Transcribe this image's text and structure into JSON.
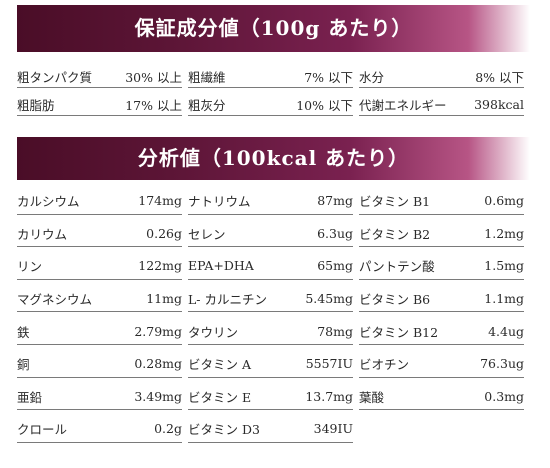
{
  "section1": {
    "title": "保証成分値（100g あたり）",
    "items": [
      {
        "label": "粗タンパク質",
        "value": "30% 以上"
      },
      {
        "label": "粗繊維",
        "value": "7% 以下"
      },
      {
        "label": "水分",
        "value": "8% 以下"
      },
      {
        "label": "粗脂肪",
        "value": "17% 以上"
      },
      {
        "label": "粗灰分",
        "value": "10% 以下"
      },
      {
        "label": "代謝エネルギー",
        "value": "398kcal"
      }
    ]
  },
  "section2": {
    "title": "分析値（100kcal あたり）",
    "items": [
      {
        "label": "カルシウム",
        "value": "174mg"
      },
      {
        "label": "ナトリウム",
        "value": "87mg"
      },
      {
        "label": "ビタミン B1",
        "value": "0.6mg"
      },
      {
        "label": "カリウム",
        "value": "0.26g"
      },
      {
        "label": "セレン",
        "value": "6.3ug"
      },
      {
        "label": "ビタミン B2",
        "value": "1.2mg"
      },
      {
        "label": "リン",
        "value": "122mg"
      },
      {
        "label": "EPA+DHA",
        "value": "65mg"
      },
      {
        "label": "パントテン酸",
        "value": "1.5mg"
      },
      {
        "label": "マグネシウム",
        "value": "11mg"
      },
      {
        "label": "L- カルニチン",
        "value": "5.45mg"
      },
      {
        "label": "ビタミン B6",
        "value": "1.1mg"
      },
      {
        "label": "鉄",
        "value": "2.79mg"
      },
      {
        "label": "タウリン",
        "value": "78mg"
      },
      {
        "label": "ビタミン B12",
        "value": "4.4ug"
      },
      {
        "label": "銅",
        "value": "0.28mg"
      },
      {
        "label": "ビタミン A",
        "value": "5557IU"
      },
      {
        "label": "ビオチン",
        "value": "76.3ug"
      },
      {
        "label": "亜鉛",
        "value": "3.49mg"
      },
      {
        "label": "ビタミン E",
        "value": "13.7mg"
      },
      {
        "label": "葉酸",
        "value": "0.3mg"
      },
      {
        "label": "クロール",
        "value": "0.2g"
      },
      {
        "label": "ビタミン D3",
        "value": "349IU"
      }
    ]
  }
}
